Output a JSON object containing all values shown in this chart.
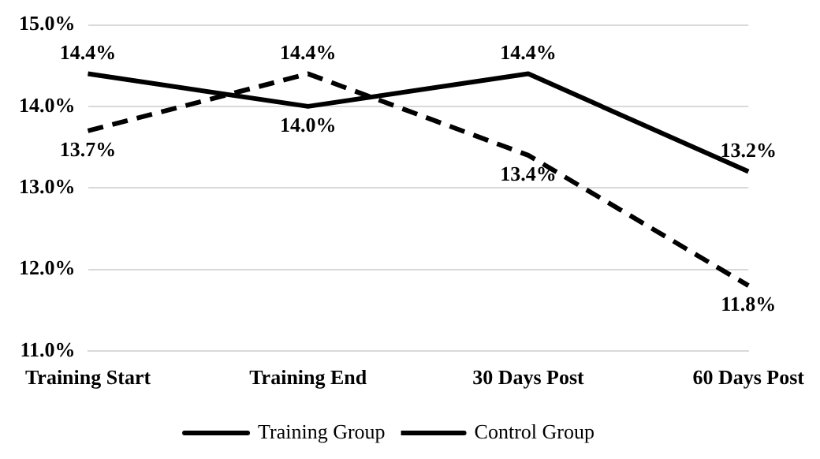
{
  "chart_data": {
    "type": "line",
    "categories": [
      "Training Start",
      "Training End",
      "30 Days Post",
      "60 Days Post"
    ],
    "series": [
      {
        "name": "Training Group",
        "color": "#000000",
        "line_style": "solid",
        "values": [
          14.4,
          14.0,
          14.4,
          13.2
        ],
        "value_labels": [
          "14.4%",
          "14.0%",
          "14.4%",
          "13.2%"
        ]
      },
      {
        "name": "Control Group",
        "color": "#000000",
        "line_style": "dashed",
        "values": [
          13.7,
          14.4,
          13.4,
          11.8
        ],
        "value_labels": [
          "13.7%",
          "14.4%",
          "13.4%",
          "11.8%"
        ]
      }
    ],
    "ylim": [
      11,
      15
    ],
    "yticks": [
      {
        "value": 11,
        "label": "11.0%"
      },
      {
        "value": 12,
        "label": "12.0%"
      },
      {
        "value": 13,
        "label": "13.0%"
      },
      {
        "value": 14,
        "label": "14.0%"
      },
      {
        "value": 15,
        "label": "15.0%"
      }
    ],
    "grid": "y",
    "legend": "bottom",
    "marker": "none"
  }
}
